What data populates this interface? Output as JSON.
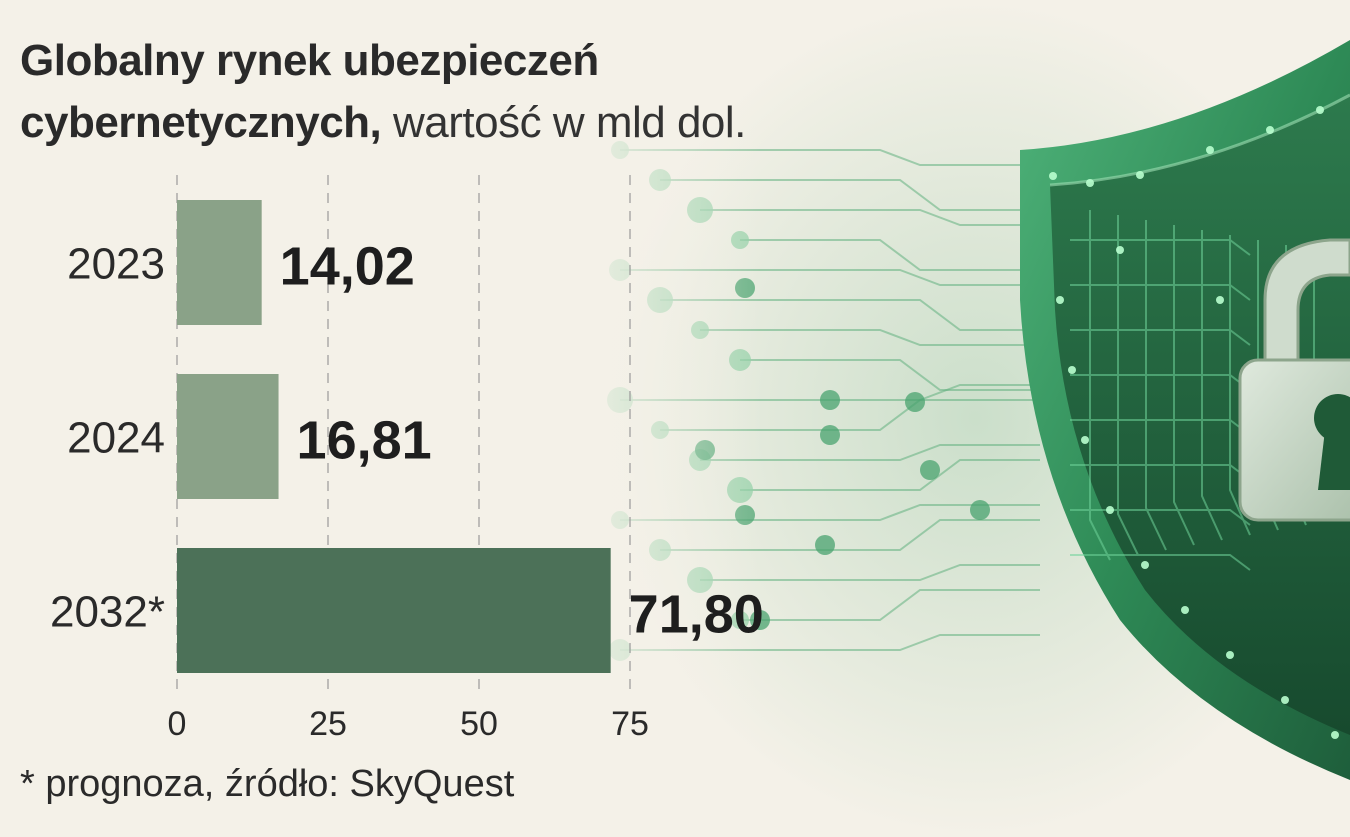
{
  "title_bold_line1": "Globalny rynek ubezpieczeń",
  "title_bold_line2": "cybernetycznych,",
  "title_unit": "wartość w mld dol.",
  "footnote": "* prognoza, źródło: SkyQuest",
  "colors": {
    "bar_light": "#8aa288",
    "bar_dark": "#4c7158",
    "text": "#222222",
    "background": "#f4f1e8",
    "accent_green": "#3f9a63"
  },
  "icons": [
    "circuit-board-icon",
    "shield-icon",
    "padlock-icon"
  ],
  "chart_data": {
    "type": "bar",
    "orientation": "horizontal",
    "categories": [
      "2023",
      "2024",
      "2032*"
    ],
    "values": [
      14.02,
      16.81,
      71.8
    ],
    "value_labels": [
      "14,02",
      "16,81",
      "71,80"
    ],
    "x_ticks": [
      "0",
      "25",
      "50",
      "75"
    ],
    "xlim": [
      0,
      75
    ],
    "grid": true,
    "title": "Globalny rynek ubezpieczeń cybernetycznych, wartość w mld dol."
  }
}
